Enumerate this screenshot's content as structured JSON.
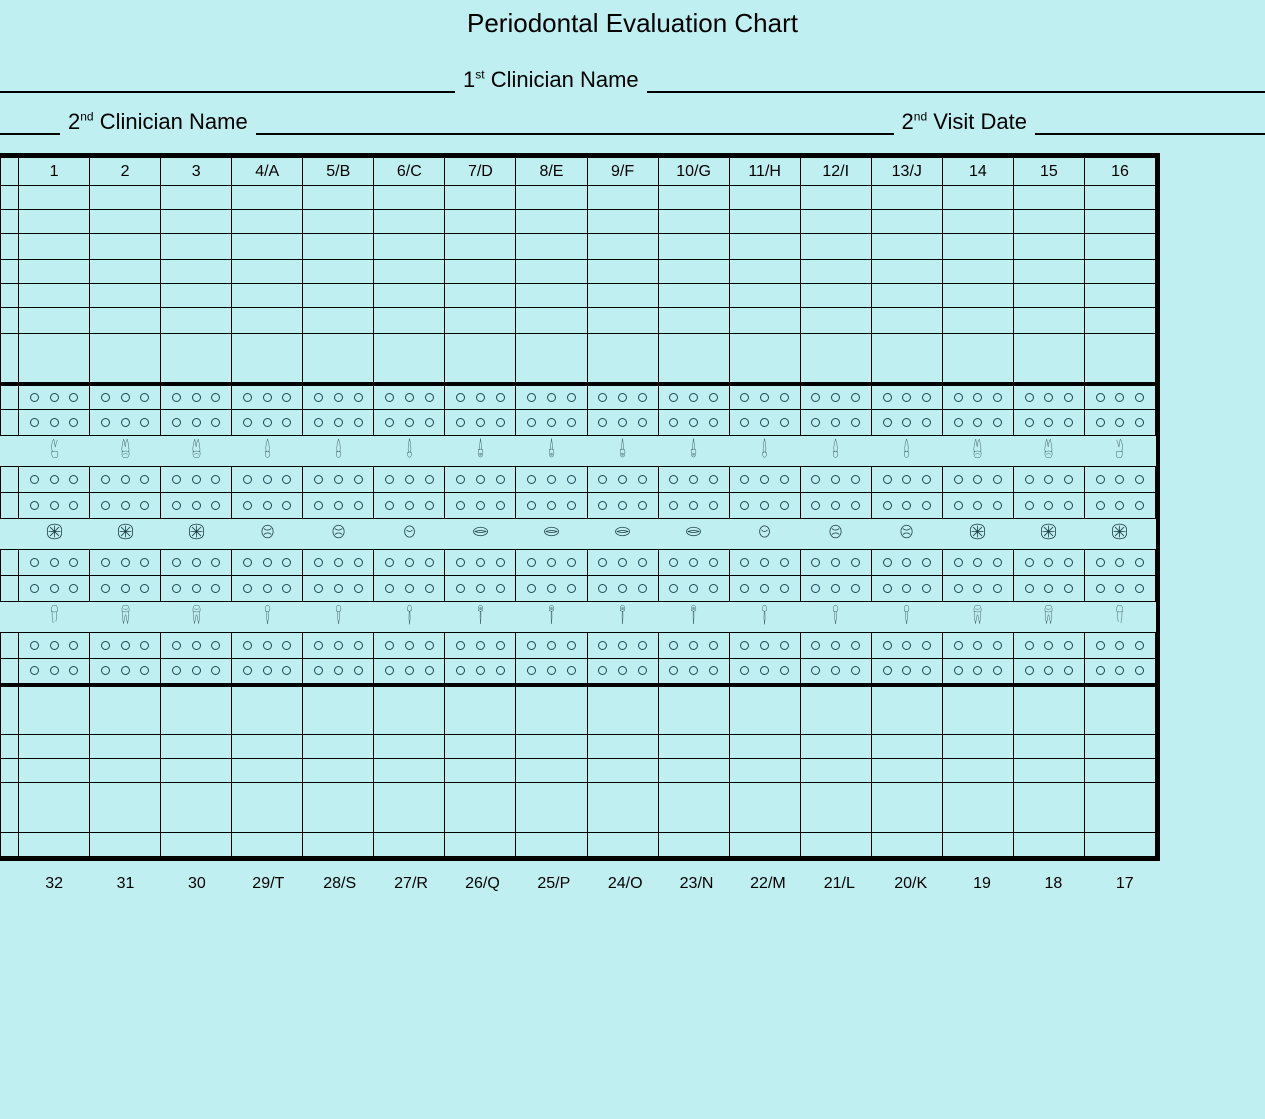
{
  "title": "Periodontal Evaluation Chart",
  "line1": {
    "ordinal": "st",
    "num": "1",
    "label": "Clinician Name"
  },
  "line2": {
    "left_num": "2",
    "left_ordinal": "nd",
    "left_label": "Clinician Name",
    "right_num": "2",
    "right_ordinal": "nd",
    "right_label": "Visit Date"
  },
  "upper_headers": [
    "1",
    "2",
    "3",
    "4/A",
    "5/B",
    "6/C",
    "7/D",
    "8/E",
    "9/F",
    "10/G",
    "11/H",
    "12/I",
    "13/J",
    "14",
    "15",
    "16"
  ],
  "lower_labels": [
    "32",
    "31",
    "30",
    "29/T",
    "28/S",
    "27/R",
    "26/Q",
    "25/P",
    "24/O",
    "23/N",
    "22/M",
    "21/L",
    "20/K",
    "19",
    "18",
    "17"
  ],
  "tooth_kinds_upper_side": [
    "molar-l",
    "molar",
    "molar",
    "premolar",
    "premolar",
    "canine",
    "incisor",
    "incisor",
    "incisor",
    "incisor",
    "canine",
    "premolar",
    "premolar",
    "molar",
    "molar",
    "molar-r"
  ],
  "tooth_kinds_occlusal": [
    "molar-o",
    "molar-o",
    "molar-o",
    "premolar-o",
    "premolar-o",
    "canine-o",
    "incisor-o",
    "incisor-o",
    "incisor-o",
    "incisor-o",
    "canine-o",
    "premolar-o",
    "premolar-o",
    "molar-o",
    "molar-o",
    "molar-o"
  ],
  "tooth_kinds_lower_side": [
    "molar-lb",
    "molar-b",
    "molar-b",
    "premolar-b",
    "premolar-b",
    "canine-b",
    "incisor-b",
    "incisor-b",
    "incisor-b",
    "incisor-b",
    "canine-b",
    "premolar-b",
    "premolar-b",
    "molar-b",
    "molar-b",
    "molar-rb"
  ],
  "colors": {
    "bg": "#bfeff0",
    "ink": "#000000",
    "circle": "#1a4a55",
    "tooth_stroke": "#1a3a42"
  },
  "circle_rows_per_band": 2,
  "circles_per_cell": 3,
  "upper_data_rows": 7,
  "lower_data_rows": 5
}
